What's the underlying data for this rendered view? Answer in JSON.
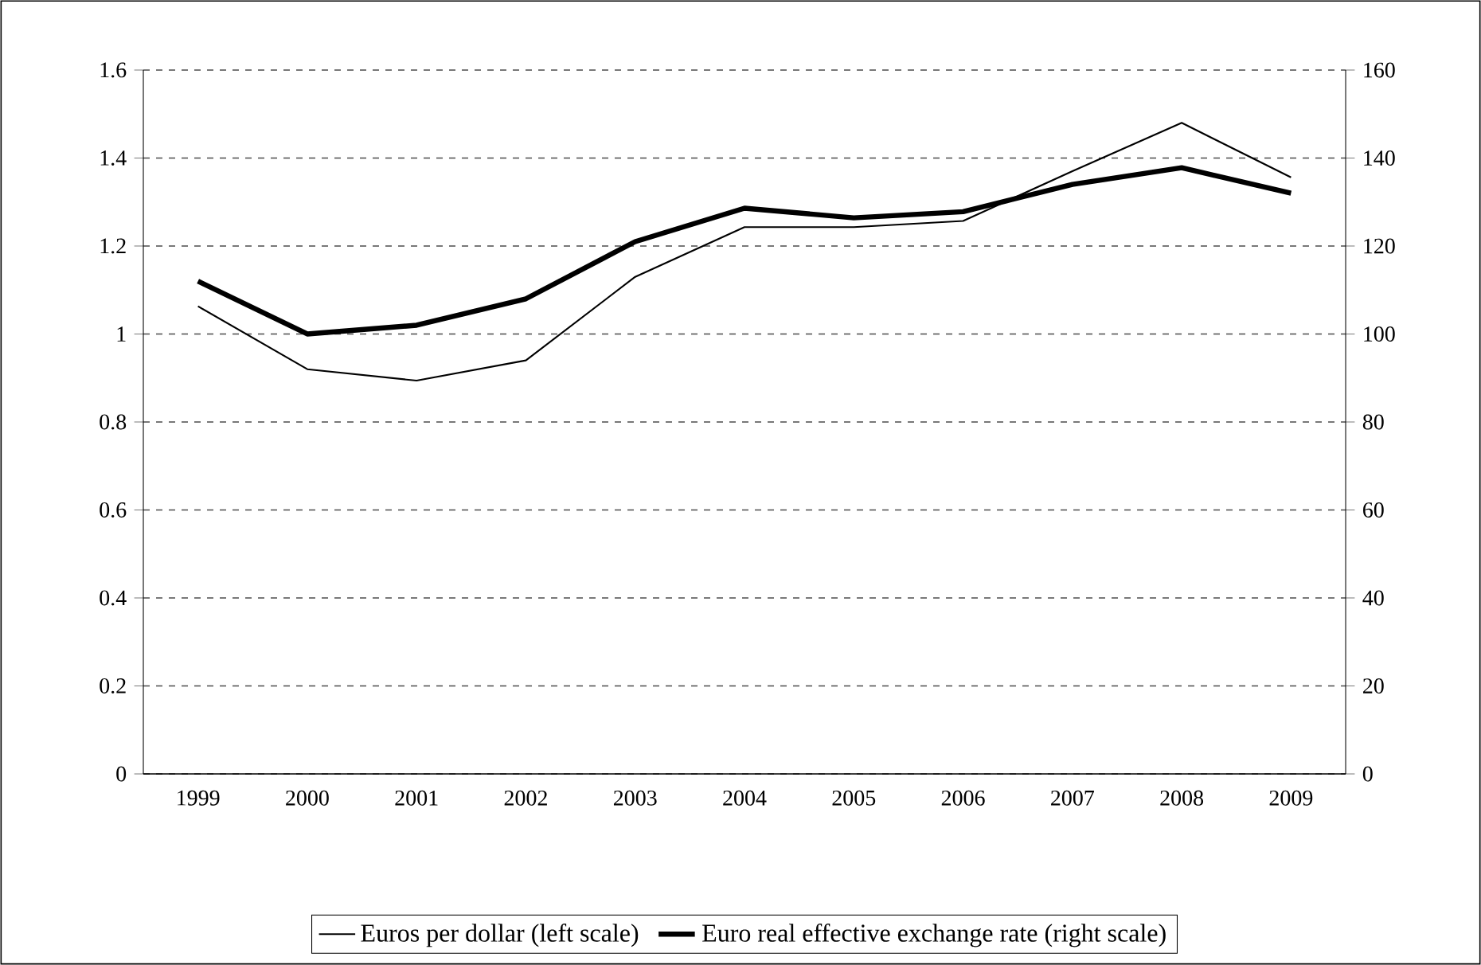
{
  "chart_data": {
    "type": "line",
    "categories": [
      "1999",
      "2000",
      "2001",
      "2002",
      "2003",
      "2004",
      "2005",
      "2006",
      "2007",
      "2008",
      "2009"
    ],
    "series": [
      {
        "name": "Euros per dollar (left scale)",
        "color": "#000000",
        "values": [
          1.063,
          0.92,
          0.894,
          0.94,
          1.13,
          1.243,
          1.243,
          1.257,
          1.37,
          1.48,
          1.356
        ]
      },
      {
        "name": "Euro real effective exchange rate (right scale)",
        "color": "#000000",
        "axis": "y2",
        "values": [
          112,
          100,
          102,
          108,
          121,
          128.6,
          126.4,
          127.8,
          134,
          137.8,
          132
        ]
      }
    ],
    "ylim": [
      0,
      1.6
    ],
    "yticks": [
      0,
      0.2,
      0.4,
      0.6,
      0.8,
      1,
      1.2,
      1.4,
      1.6
    ],
    "y2lim": [
      0,
      160
    ],
    "y2ticks": [
      0,
      20,
      40,
      60,
      80,
      100,
      120,
      140,
      160
    ],
    "grid": "y",
    "legend": "bottom",
    "marker": "none",
    "line_style": "solid"
  }
}
